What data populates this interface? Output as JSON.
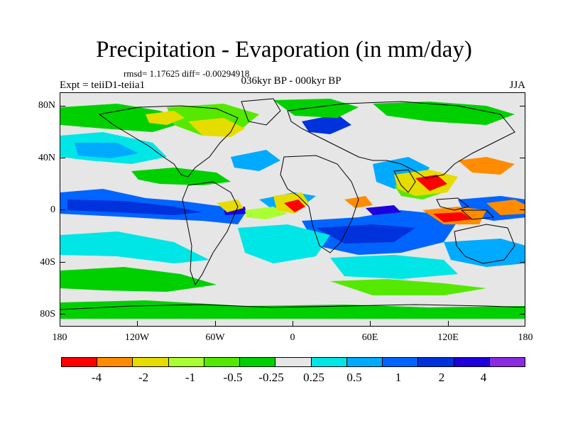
{
  "title": "Precipitation - Evaporation (in mm/day)",
  "stats": "rmsd= 1.17625 diff= -0.00294918",
  "experiment": "Expt = teiiD1-teiia1",
  "period": "036kyr BP - 000kyr BP",
  "season": "JJA",
  "map": {
    "projection": "cylindrical equidistant",
    "lon_range": [
      -180,
      180
    ],
    "lat_range": [
      -90,
      90
    ],
    "y_ticks": [
      "80N",
      "40N",
      "0",
      "40S",
      "80S"
    ],
    "x_ticks": [
      "180",
      "120W",
      "60W",
      "0",
      "60E",
      "120E",
      "180"
    ]
  },
  "colorbar": {
    "colors": [
      "#ff0000",
      "#ff8c00",
      "#e6dc00",
      "#aaff33",
      "#55e800",
      "#00d000",
      "#e6e6e6",
      "#00e6e6",
      "#00aaff",
      "#0064ff",
      "#0032dc",
      "#1e00dc",
      "#8a2be2"
    ],
    "labels": [
      "-4",
      "-2",
      "-1",
      "-0.5",
      "-0.25",
      "0.25",
      "0.5",
      "1",
      "2",
      "4"
    ]
  }
}
